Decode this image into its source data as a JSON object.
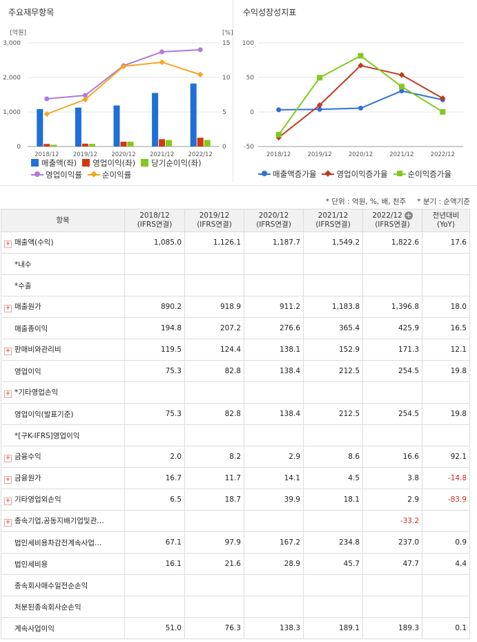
{
  "left_panel": {
    "title": "주요재무항목"
  },
  "right_panel": {
    "title": "수익성장성지표"
  },
  "chart_data": [
    {
      "type": "bar",
      "categories": [
        "2018/12",
        "2019/12",
        "2020/12",
        "2021/12",
        "2022/12"
      ],
      "left_axis": {
        "unit": "[억원]",
        "ylim": [
          0,
          3000
        ],
        "ticks": [
          "0",
          "1,000",
          "2,000",
          "3,000"
        ]
      },
      "right_axis": {
        "unit": "[%]",
        "ylim": [
          0,
          15
        ],
        "ticks": [
          "0",
          "5",
          "10",
          "15"
        ]
      },
      "series": [
        {
          "name": "매출액(좌)",
          "kind": "bar",
          "axis": "left",
          "color": "#1f6fd6",
          "values": [
            1085.0,
            1126.1,
            1187.7,
            1549.2,
            1822.6
          ]
        },
        {
          "name": "영업이익(좌)",
          "kind": "bar",
          "axis": "left",
          "color": "#d4380d",
          "values": [
            75.3,
            82.8,
            138.4,
            212.5,
            254.5
          ]
        },
        {
          "name": "당기순이익(좌)",
          "kind": "bar",
          "axis": "left",
          "color": "#82c91e",
          "values": [
            51.0,
            76.3,
            138.3,
            189.1,
            189.3
          ]
        },
        {
          "name": "영업이익률",
          "kind": "line",
          "axis": "right",
          "color": "#b07ad9",
          "values": [
            6.9,
            7.4,
            11.7,
            13.7,
            14.0
          ]
        },
        {
          "name": "순이익률",
          "kind": "line",
          "axis": "right",
          "color": "#f5a623",
          "values": [
            4.7,
            6.8,
            11.6,
            12.2,
            10.4
          ]
        }
      ],
      "legend_rows": [
        [
          "매출액(좌)",
          "영업이익(좌)",
          "당기순이익(좌)"
        ],
        [
          "영업이익률",
          "순이익률"
        ]
      ]
    },
    {
      "type": "line",
      "categories": [
        "2018/12",
        "2019/12",
        "2020/12",
        "2021/12",
        "2022/12"
      ],
      "ylim": [
        -50,
        100
      ],
      "ticks": [
        "-50",
        "0",
        "50",
        "100"
      ],
      "series": [
        {
          "name": "매출액증가율",
          "marker": "circle",
          "color": "#2f6fdb",
          "values": [
            3.1,
            3.8,
            5.5,
            30.4,
            17.6
          ]
        },
        {
          "name": "영업이익증가율",
          "marker": "diamond",
          "color": "#c0391f",
          "values": [
            -37.0,
            9.9,
            67.2,
            53.6,
            19.8
          ]
        },
        {
          "name": "순이익증가율",
          "marker": "square",
          "color": "#82c91e",
          "values": [
            -33.0,
            49.6,
            81.3,
            36.7,
            0.1
          ]
        }
      ]
    }
  ],
  "notes": {
    "unit": "* 단위 : 억원, %, 배, 천주",
    "quarter": "* 분기 : 순액기준"
  },
  "table": {
    "header": {
      "item": "항목",
      "periods": [
        {
          "year": "2018/12",
          "basis": "(IFRS연결)"
        },
        {
          "year": "2019/12",
          "basis": "(IFRS연결)"
        },
        {
          "year": "2020/12",
          "basis": "(IFRS연결)"
        },
        {
          "year": "2021/12",
          "basis": "(IFRS연결)"
        },
        {
          "year": "2022/12",
          "basis": "(IFRS연결)"
        }
      ],
      "yoy_line1": "전년대비",
      "yoy_line2": "(YoY)"
    },
    "rows": [
      {
        "label": "매출액(수익)",
        "expand": true,
        "values": [
          "1,085.0",
          "1,126.1",
          "1,187.7",
          "1,549.2",
          "1,822.6"
        ],
        "yoy": "17.6"
      },
      {
        "label": "*내수",
        "expand": false,
        "values": [
          "",
          "",
          "",
          "",
          ""
        ],
        "yoy": ""
      },
      {
        "label": "*수출",
        "expand": false,
        "values": [
          "",
          "",
          "",
          "",
          ""
        ],
        "yoy": ""
      },
      {
        "label": "매출원가",
        "expand": true,
        "values": [
          "890.2",
          "918.9",
          "911.2",
          "1,183.8",
          "1,396.8"
        ],
        "yoy": "18.0"
      },
      {
        "label": "매출총이익",
        "expand": false,
        "values": [
          "194.8",
          "207.2",
          "276.6",
          "365.4",
          "425.9"
        ],
        "yoy": "16.5"
      },
      {
        "label": "판매비와관리비",
        "expand": true,
        "values": [
          "119.5",
          "124.4",
          "138.1",
          "152.9",
          "171.3"
        ],
        "yoy": "12.1"
      },
      {
        "label": "영업이익",
        "expand": false,
        "values": [
          "75.3",
          "82.8",
          "138.4",
          "212.5",
          "254.5"
        ],
        "yoy": "19.8"
      },
      {
        "label": "*기타영업손익",
        "expand": true,
        "values": [
          "",
          "",
          "",
          "",
          ""
        ],
        "yoy": ""
      },
      {
        "label": "영업이익(발표기준)",
        "expand": false,
        "values": [
          "75.3",
          "82.8",
          "138.4",
          "212.5",
          "254.5"
        ],
        "yoy": "19.8"
      },
      {
        "label": "*[구K-IFRS]영업이익",
        "expand": false,
        "values": [
          "",
          "",
          "",
          "",
          ""
        ],
        "yoy": ""
      },
      {
        "label": "금융수익",
        "expand": true,
        "values": [
          "2.0",
          "8.2",
          "2.9",
          "8.6",
          "16.6"
        ],
        "yoy": "92.1"
      },
      {
        "label": "금융원가",
        "expand": true,
        "values": [
          "16.7",
          "11.7",
          "14.1",
          "4.5",
          "3.8"
        ],
        "yoy": "-14.8"
      },
      {
        "label": "기타영업외손익",
        "expand": true,
        "values": [
          "6.5",
          "18.7",
          "39.9",
          "18.1",
          "2.9"
        ],
        "yoy": "-83.9"
      },
      {
        "label": "종속기업,공동지배기업및관…",
        "expand": true,
        "values": [
          "",
          "",
          "",
          "",
          "-33.2"
        ],
        "yoy": ""
      },
      {
        "label": "법인세비용차감전계속사업…",
        "expand": false,
        "values": [
          "67.1",
          "97.9",
          "167.2",
          "234.8",
          "237.0"
        ],
        "yoy": "0.9"
      },
      {
        "label": "법인세비용",
        "expand": false,
        "values": [
          "16.1",
          "21.6",
          "28.9",
          "45.7",
          "47.7"
        ],
        "yoy": "4.4"
      },
      {
        "label": "종속회사매수일전순손익",
        "expand": false,
        "values": [
          "",
          "",
          "",
          "",
          ""
        ],
        "yoy": ""
      },
      {
        "label": "처분된종속회사순손익",
        "expand": false,
        "values": [
          "",
          "",
          "",
          "",
          ""
        ],
        "yoy": ""
      },
      {
        "label": "계속사업이익",
        "expand": false,
        "values": [
          "51.0",
          "76.3",
          "138.3",
          "189.1",
          "189.3"
        ],
        "yoy": "0.1"
      }
    ]
  }
}
